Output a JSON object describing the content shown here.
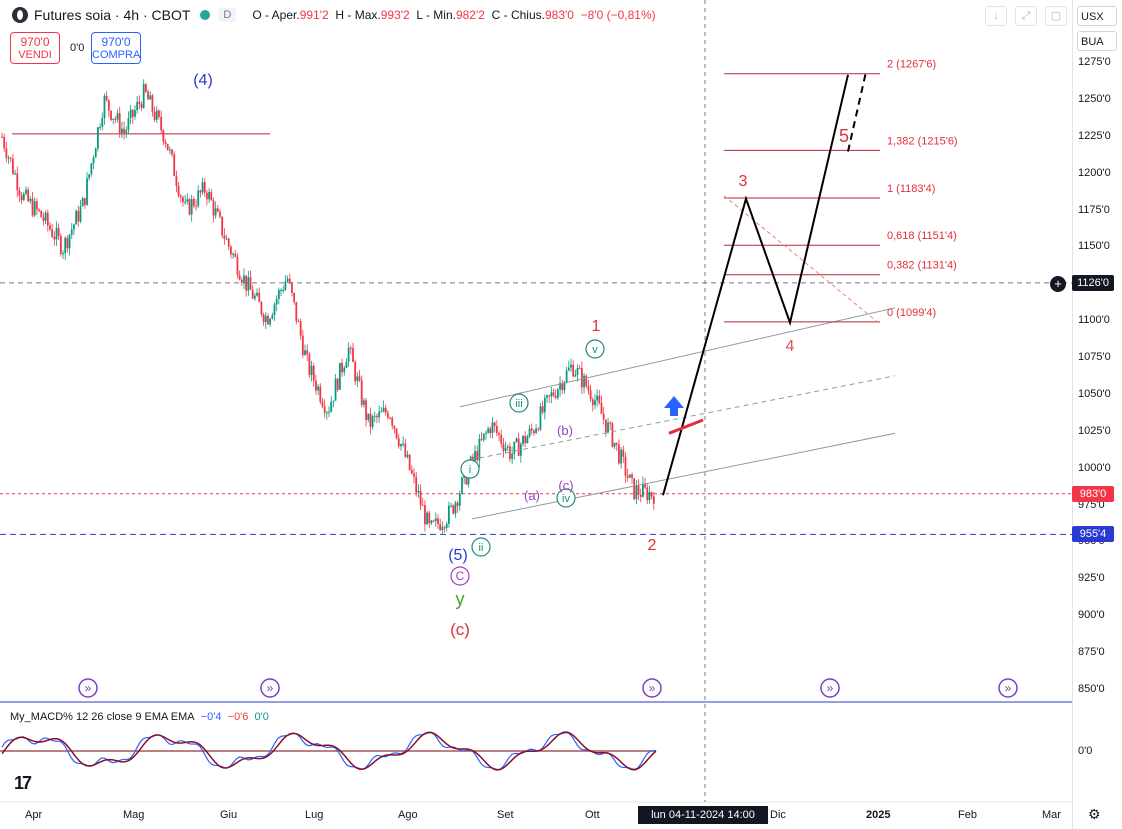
{
  "header": {
    "symbol": "Futures soia · 4h · CBOT",
    "badge": "D",
    "ohlc": [
      {
        "label": "O - Aper.",
        "value": "991'2"
      },
      {
        "label": "H - Max.",
        "value": "993'2"
      },
      {
        "label": "L - Min.",
        "value": "982'2"
      },
      {
        "label": "C - Chius.",
        "value": "983'0"
      },
      {
        "label": "",
        "value": "−8'0 (−0,81%)"
      }
    ]
  },
  "trade": {
    "sell_price": "970'0",
    "sell_label": "VENDI",
    "buy_price": "970'0",
    "buy_label": "COMPRA",
    "spread": "0'0"
  },
  "right_panel": {
    "currency": "USX",
    "unit": "BUA",
    "last_price_label": "983'0",
    "crosshair_price_label": "1126'0",
    "support_price_label": "955'4"
  },
  "macd": {
    "title": "My_MACD% 12 26 close 9 EMA EMA",
    "v1": "−0'4",
    "v2": "−0'6",
    "v3": "0'0",
    "axis_label": "0'0"
  },
  "crosshair_time": "lun 04-11-2024   14:00",
  "colors": {
    "up": "#089981",
    "down": "#f23645",
    "wave_blue": "#2a39d4",
    "wave_red": "#e0303b",
    "wave_teal": "#1b8a7a",
    "wave_purple": "#9c3fc0",
    "wave_green": "#4aa02c"
  },
  "chart_data": {
    "type": "candlestick",
    "timeframe": "4h",
    "y_axis": {
      "range": [
        840,
        1285
      ],
      "ticks": [
        "1275'0",
        "1250'0",
        "1225'0",
        "1200'0",
        "1175'0",
        "1150'0",
        "1125'0",
        "1100'0",
        "1075'0",
        "1050'0",
        "1025'0",
        "1000'0",
        "975'0",
        "950'0",
        "925'0",
        "900'0",
        "875'0",
        "850'0"
      ]
    },
    "x_axis": {
      "ticks": [
        "Apr",
        "Mag",
        "Giu",
        "Lug",
        "Ago",
        "Set",
        "Ott",
        "Dic",
        "2025",
        "Feb",
        "Mar"
      ]
    },
    "price_path": [
      {
        "t": "Apr",
        "price": 1225
      },
      {
        "t": "Apr",
        "price": 1185
      },
      {
        "t": "Apr",
        "price": 1170
      },
      {
        "t": "Mag",
        "price": 1150
      },
      {
        "t": "Mag",
        "price": 1180
      },
      {
        "t": "Mag",
        "price": 1250
      },
      {
        "t": "Mag",
        "price": 1228
      },
      {
        "t": "Giu",
        "price": 1255
      },
      {
        "t": "Giu",
        "price": 1225
      },
      {
        "t": "Giu",
        "price": 1175
      },
      {
        "t": "Giu",
        "price": 1190
      },
      {
        "t": "Giu",
        "price": 1155
      },
      {
        "t": "Lug",
        "price": 1125
      },
      {
        "t": "Lug",
        "price": 1102
      },
      {
        "t": "Lug",
        "price": 1130
      },
      {
        "t": "Lug",
        "price": 1070
      },
      {
        "t": "Lug",
        "price": 1040
      },
      {
        "t": "Ago",
        "price": 1082
      },
      {
        "t": "Ago",
        "price": 1030
      },
      {
        "t": "Ago",
        "price": 1040
      },
      {
        "t": "Ago",
        "price": 1000
      },
      {
        "t": "Ago",
        "price": 958
      },
      {
        "t": "Ago",
        "price": 970
      },
      {
        "t": "Set",
        "price": 1002
      },
      {
        "t": "Set",
        "price": 1030
      },
      {
        "t": "Set",
        "price": 1010
      },
      {
        "t": "Set",
        "price": 1025
      },
      {
        "t": "Set",
        "price": 1050
      },
      {
        "t": "Ott",
        "price": 1070
      },
      {
        "t": "Ott",
        "price": 1050
      },
      {
        "t": "Ott",
        "price": 1020
      },
      {
        "t": "Ott",
        "price": 985
      },
      {
        "t": "Ott",
        "price": 983
      }
    ],
    "horizontal_levels": [
      {
        "price": 1227,
        "style": "solid"
      },
      {
        "price": 983,
        "style": "dashed"
      },
      {
        "price": 955.5,
        "style": "dashed"
      },
      {
        "price": 1126,
        "style": "dashed"
      }
    ],
    "fibonacci": [
      {
        "label": "2 (1267'6)",
        "price": 1267.75
      },
      {
        "label": "1,382 (1215'6)",
        "price": 1215.75
      },
      {
        "label": "1 (1183'4)",
        "price": 1183.5
      },
      {
        "label": "0,618 (1151'4)",
        "price": 1151.5
      },
      {
        "label": "0,382 (1131'4)",
        "price": 1131.5
      },
      {
        "label": "0 (1099'4)",
        "price": 1099.5
      }
    ],
    "wave_labels": [
      {
        "text": "(4)",
        "color": "blue"
      },
      {
        "text": "(5)",
        "color": "blue"
      },
      {
        "text": "C",
        "color": "purple"
      },
      {
        "text": "y",
        "color": "green"
      },
      {
        "text": "(c)",
        "color": "red"
      },
      {
        "text": "i",
        "color": "teal"
      },
      {
        "text": "ii",
        "color": "teal"
      },
      {
        "text": "iii",
        "color": "teal"
      },
      {
        "text": "iv",
        "color": "teal"
      },
      {
        "text": "v",
        "color": "teal"
      },
      {
        "text": "(a)",
        "color": "purple"
      },
      {
        "text": "(b)",
        "color": "purple"
      },
      {
        "text": "(c)",
        "color": "purple"
      },
      {
        "text": "1",
        "color": "red"
      },
      {
        "text": "2",
        "color": "red"
      },
      {
        "text": "3",
        "color": "red"
      },
      {
        "text": "4",
        "color": "red"
      },
      {
        "text": "5",
        "color": "red"
      }
    ],
    "projection": [
      {
        "price": 982
      },
      {
        "price": 1183
      },
      {
        "price": 1099
      },
      {
        "price": 1267
      }
    ]
  }
}
